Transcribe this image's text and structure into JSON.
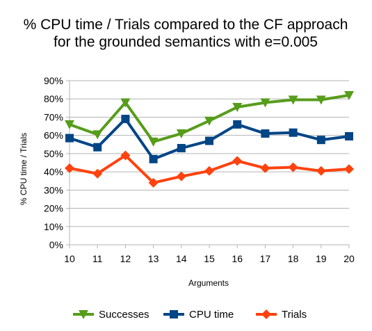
{
  "chart_data": {
    "type": "line",
    "title_line1": "% CPU time / Trials compared to the CF approach",
    "title_line2": "for the grounded semantics with e=0.005",
    "xlabel": "Arguments",
    "ylabel": "% CPU time / Trials",
    "x": [
      10,
      11,
      12,
      13,
      14,
      15,
      16,
      17,
      18,
      19,
      20
    ],
    "ylim": [
      0,
      90
    ],
    "yticks": [
      0,
      10,
      20,
      30,
      40,
      50,
      60,
      70,
      80,
      90
    ],
    "ytick_labels": [
      "0%",
      "10%",
      "20%",
      "30%",
      "40%",
      "50%",
      "60%",
      "70%",
      "80%",
      "90%"
    ],
    "xtick_labels": [
      "10",
      "11",
      "12",
      "13",
      "14",
      "15",
      "16",
      "17",
      "18",
      "19",
      "20"
    ],
    "grid": "horizontal",
    "legend_position": "bottom",
    "series": [
      {
        "name": "Successes",
        "color": "#579d1c",
        "marker": "triangle-down",
        "values": [
          66,
          60.5,
          78,
          56.5,
          61,
          68,
          75.5,
          78,
          79.5,
          79.5,
          82
        ]
      },
      {
        "name": "CPU time",
        "color": "#004586",
        "marker": "square",
        "values": [
          58.5,
          53.5,
          69,
          47,
          53,
          57,
          66,
          61,
          61.5,
          57.5,
          59.5
        ]
      },
      {
        "name": "Trials",
        "color": "#ff420e",
        "marker": "diamond",
        "values": [
          42,
          39,
          49,
          34,
          37.5,
          40.5,
          46,
          42,
          42.5,
          40.5,
          41.5
        ]
      }
    ]
  }
}
